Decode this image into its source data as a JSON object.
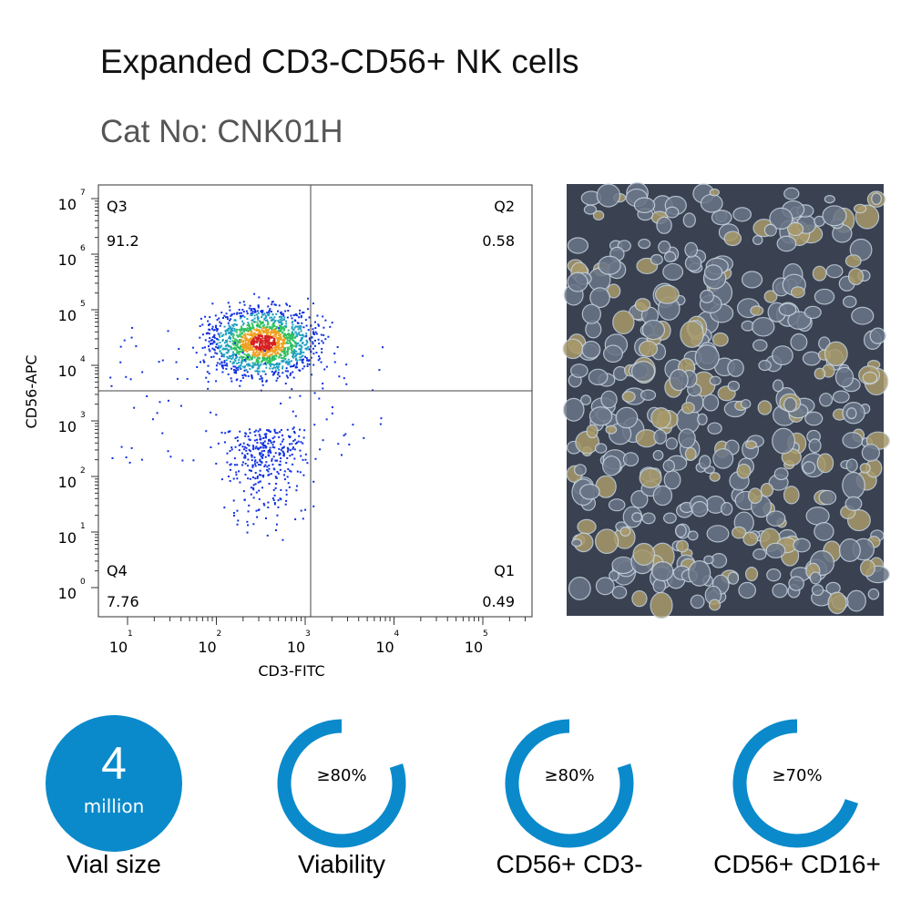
{
  "header": {
    "title": "Expanded CD3-CD56+ NK cells",
    "subtitle": "Cat No: CNK01H"
  },
  "plot": {
    "x_label": "CD3-FITC",
    "y_label": "CD56-APC",
    "y_ticks": [
      {
        "base": "10",
        "exp": "7"
      },
      {
        "base": "10",
        "exp": "6"
      },
      {
        "base": "10",
        "exp": "5"
      },
      {
        "base": "10",
        "exp": "4"
      },
      {
        "base": "10",
        "exp": "3"
      },
      {
        "base": "10",
        "exp": "2"
      },
      {
        "base": "10",
        "exp": "1"
      },
      {
        "base": "10",
        "exp": "0"
      }
    ],
    "x_ticks": [
      {
        "base": "10",
        "exp": "1"
      },
      {
        "base": "10",
        "exp": "2"
      },
      {
        "base": "10",
        "exp": "3"
      },
      {
        "base": "10",
        "exp": "4"
      },
      {
        "base": "10",
        "exp": "5"
      }
    ],
    "quadrants": [
      {
        "label": "Q3",
        "value": "91.2"
      },
      {
        "label": "Q2",
        "value": "0.58"
      },
      {
        "label": "Q4",
        "value": "7.76"
      },
      {
        "label": "Q1",
        "value": "0.49"
      }
    ]
  },
  "stats": [
    {
      "value": "4",
      "unit": "million",
      "label": "Vial size"
    },
    {
      "value": "≥80%",
      "label": "Viability"
    },
    {
      "value": "≥80%",
      "label": "CD56+ CD3-"
    },
    {
      "value": "≥70%",
      "label": "CD56+ CD16+"
    }
  ]
}
